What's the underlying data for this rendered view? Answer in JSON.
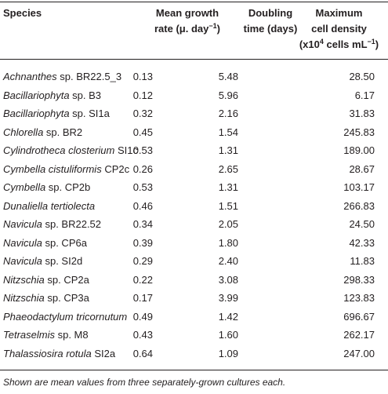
{
  "headers": {
    "species": "Species",
    "growth_line1": "Mean growth",
    "growth_line2_pre": "rate (μ. day",
    "growth_line2_sup": "−1",
    "growth_line2_post": ")",
    "doubling_line1": "Doubling",
    "doubling_line2": "time (days)",
    "density_line1": "Maximum",
    "density_line2": "cell density",
    "density_line3_pre": "(x10",
    "density_line3_sup1": "4",
    "density_line3_mid": " cells mL",
    "density_line3_sup2": "−1",
    "density_line3_post": ")"
  },
  "rows": [
    {
      "genus": "Achnanthes",
      "rest": " sp. BR22.5_3",
      "growth": "0.13",
      "doubling": "5.48",
      "density": "28.50"
    },
    {
      "genus": "Bacillariophyta",
      "rest": " sp. B3",
      "growth": "0.12",
      "doubling": "5.96",
      "density": "6.17"
    },
    {
      "genus": "Bacillariophyta",
      "rest": " sp. SI1a",
      "growth": "0.32",
      "doubling": "2.16",
      "density": "31.83"
    },
    {
      "genus": "Chlorella",
      "rest": " sp. BR2",
      "growth": "0.45",
      "doubling": "1.54",
      "density": "245.83"
    },
    {
      "genus": "Cylindrotheca closterium",
      "rest": " SI1c",
      "growth": "0.53",
      "doubling": "1.31",
      "density": "189.00"
    },
    {
      "genus": "Cymbella cistuliformis",
      "rest": " CP2c",
      "growth": "0.26",
      "doubling": "2.65",
      "density": "28.67"
    },
    {
      "genus": "Cymbella",
      "rest": " sp. CP2b",
      "growth": "0.53",
      "doubling": "1.31",
      "density": "103.17"
    },
    {
      "genus": "Dunaliella tertiolecta",
      "rest": "",
      "growth": "0.46",
      "doubling": "1.51",
      "density": "266.83"
    },
    {
      "genus": "Navicula",
      "rest": " sp. BR22.52",
      "growth": "0.34",
      "doubling": "2.05",
      "density": "24.50"
    },
    {
      "genus": "Navicula",
      "rest": " sp. CP6a",
      "growth": "0.39",
      "doubling": "1.80",
      "density": "42.33"
    },
    {
      "genus": "Navicula",
      "rest": " sp. SI2d",
      "growth": "0.29",
      "doubling": "2.40",
      "density": "11.83"
    },
    {
      "genus": "Nitzschia",
      "rest": " sp. CP2a",
      "growth": "0.22",
      "doubling": "3.08",
      "density": "298.33"
    },
    {
      "genus": "Nitzschia",
      "rest": " sp. CP3a",
      "growth": "0.17",
      "doubling": "3.99",
      "density": "123.83"
    },
    {
      "genus": "Phaeodactylum tricornutum",
      "rest": "",
      "growth": "0.49",
      "doubling": "1.42",
      "density": "696.67"
    },
    {
      "genus": "Tetraselmis",
      "rest": " sp. M8",
      "growth": "0.43",
      "doubling": "1.60",
      "density": "262.17"
    },
    {
      "genus": "Thalassiosira rotula",
      "rest": " SI2a",
      "growth": "0.64",
      "doubling": "1.09",
      "density": "247.00"
    }
  ],
  "footnote": "Shown are mean values from three separately-grown cultures each."
}
